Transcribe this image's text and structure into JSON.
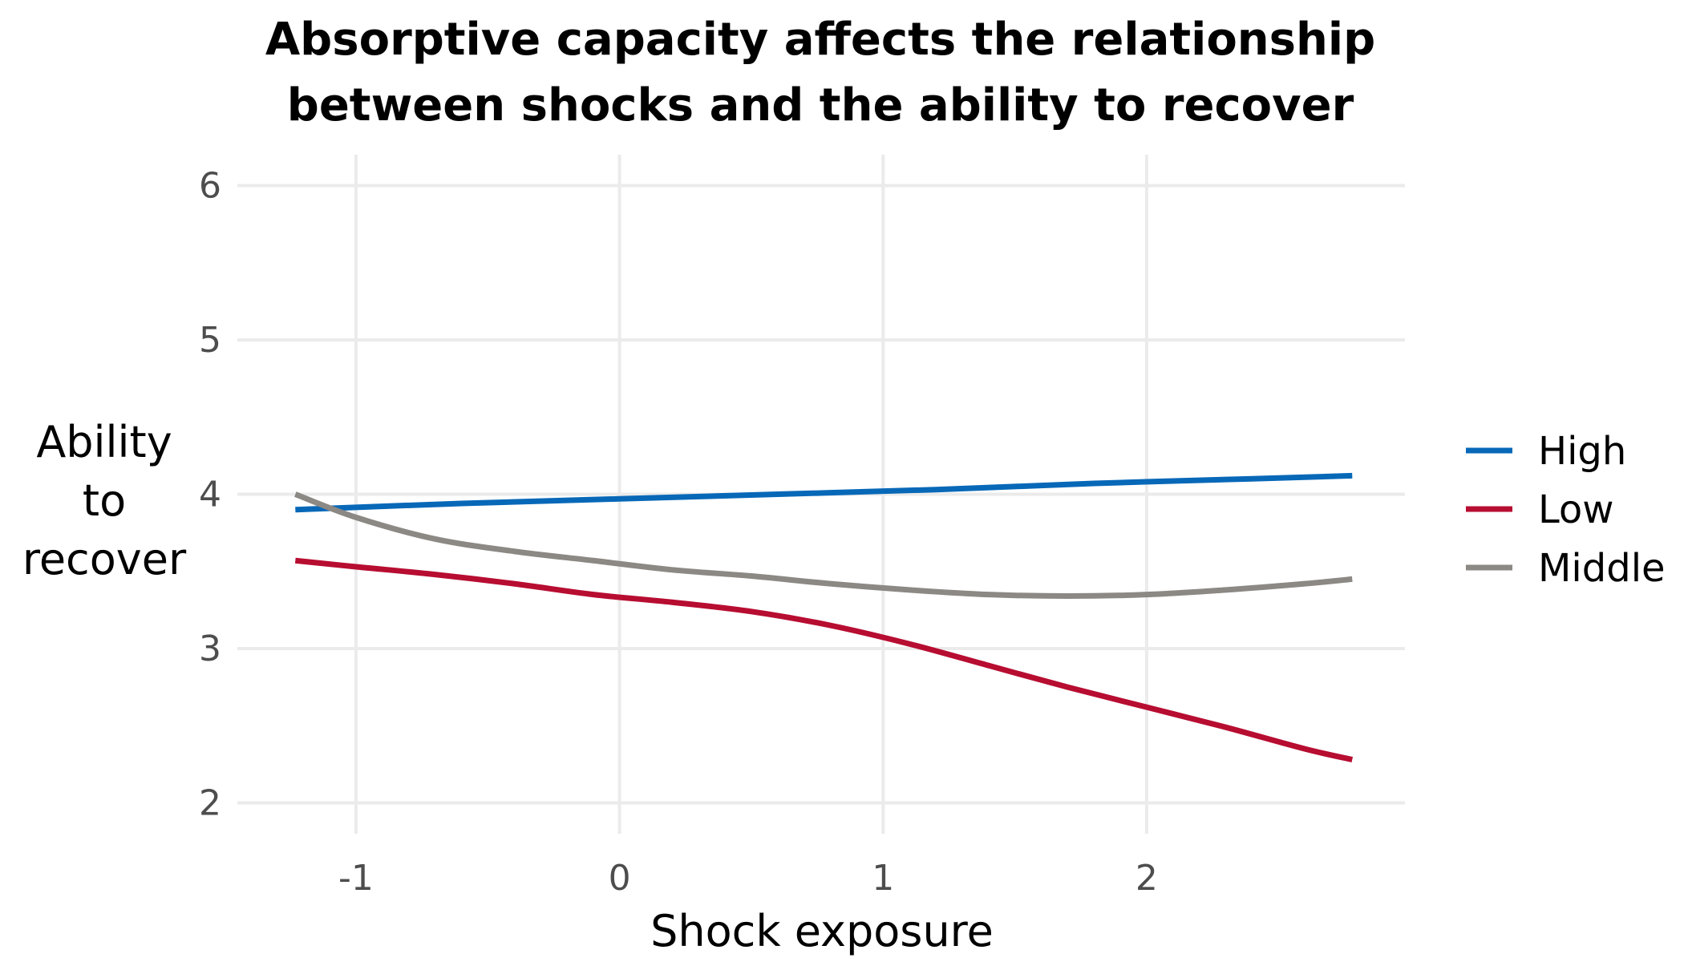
{
  "chart_data": {
    "type": "line",
    "title": [
      "Absorptive capacity affects the relationship",
      "between shocks and the ability to recover"
    ],
    "xlabel": "Shock exposure",
    "ylabel": [
      "Ability",
      "to",
      "recover"
    ],
    "xlim": [
      -1.45,
      2.98
    ],
    "ylim": [
      1.8,
      6.2
    ],
    "xticks": [
      -1,
      0,
      1,
      2
    ],
    "xtick_labels": [
      "-1",
      "0",
      "1",
      "2"
    ],
    "yticks": [
      2,
      3,
      4,
      5,
      6
    ],
    "ytick_labels": [
      "2",
      "3",
      "4",
      "5",
      "6"
    ],
    "grid": true,
    "legend_position": "right",
    "series": [
      {
        "name": "High",
        "color": "#0868b8",
        "x": [
          -1.23,
          -0.6,
          0,
          0.6,
          1.2,
          1.8,
          2.4,
          2.78
        ],
        "y": [
          3.9,
          3.94,
          3.97,
          4.0,
          4.03,
          4.07,
          4.1,
          4.12
        ]
      },
      {
        "name": "Low",
        "color": "#b70d31",
        "x": [
          -1.23,
          -1.0,
          -0.7,
          -0.4,
          -0.1,
          0.2,
          0.5,
          0.8,
          1.1,
          1.4,
          1.7,
          2.0,
          2.3,
          2.6,
          2.78
        ],
        "y": [
          3.57,
          3.53,
          3.48,
          3.42,
          3.35,
          3.3,
          3.24,
          3.15,
          3.03,
          2.89,
          2.75,
          2.62,
          2.49,
          2.35,
          2.28
        ]
      },
      {
        "name": "Middle",
        "color": "#8c8884",
        "x": [
          -1.23,
          -1.0,
          -0.7,
          -0.4,
          -0.1,
          0.2,
          0.5,
          0.8,
          1.1,
          1.4,
          1.7,
          2.0,
          2.3,
          2.6,
          2.78
        ],
        "y": [
          4.0,
          3.85,
          3.71,
          3.63,
          3.57,
          3.51,
          3.47,
          3.42,
          3.38,
          3.35,
          3.34,
          3.35,
          3.38,
          3.42,
          3.45
        ]
      }
    ]
  }
}
